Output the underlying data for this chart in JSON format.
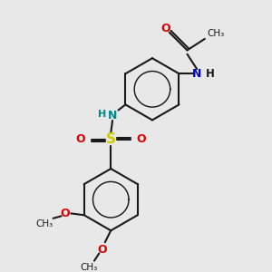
{
  "bg_color": "#e8e8e8",
  "bond_color": "#1a1a1a",
  "bond_lw": 1.5,
  "colors": {
    "O": "#dd0000",
    "N_blue": "#0000cc",
    "N_teal": "#008888",
    "S": "#cccc00",
    "C": "#1a1a1a",
    "H": "#1a1a1a"
  },
  "fig_w": 3.0,
  "fig_h": 3.0,
  "dpi": 100,
  "xlim": [
    -1.5,
    5.5
  ],
  "ylim": [
    -3.5,
    4.5
  ]
}
